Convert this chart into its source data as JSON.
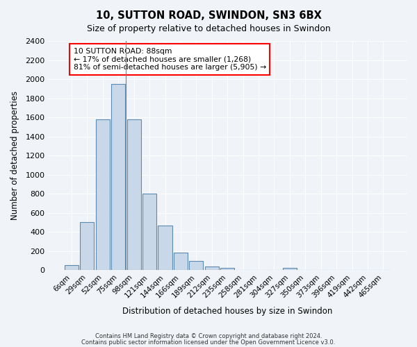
{
  "title": "10, SUTTON ROAD, SWINDON, SN3 6BX",
  "subtitle": "Size of property relative to detached houses in Swindon",
  "xlabel": "Distribution of detached houses by size in Swindon",
  "ylabel": "Number of detached properties",
  "bar_color": "#c8d8e8",
  "bar_edge_color": "#5a8ab0",
  "background_color": "#f0f4f8",
  "grid_color": "#ffffff",
  "categories": [
    "6sqm",
    "29sqm",
    "52sqm",
    "75sqm",
    "98sqm",
    "121sqm",
    "144sqm",
    "166sqm",
    "189sqm",
    "212sqm",
    "235sqm",
    "258sqm",
    "281sqm",
    "304sqm",
    "327sqm",
    "350sqm",
    "373sqm",
    "396sqm",
    "419sqm",
    "442sqm",
    "465sqm"
  ],
  "values": [
    55,
    500,
    1580,
    1950,
    1580,
    800,
    470,
    185,
    95,
    40,
    25,
    0,
    0,
    0,
    20,
    0,
    0,
    0,
    0,
    0,
    0
  ],
  "ylim": [
    0,
    2400
  ],
  "yticks": [
    0,
    200,
    400,
    600,
    800,
    1000,
    1200,
    1400,
    1600,
    1800,
    2000,
    2200,
    2400
  ],
  "annotation_title": "10 SUTTON ROAD: 88sqm",
  "annotation_line1": "← 17% of detached houses are smaller (1,268)",
  "annotation_line2": "81% of semi-detached houses are larger (5,905) →",
  "footer1": "Contains HM Land Registry data © Crown copyright and database right 2024.",
  "footer2": "Contains public sector information licensed under the Open Government Licence v3.0."
}
